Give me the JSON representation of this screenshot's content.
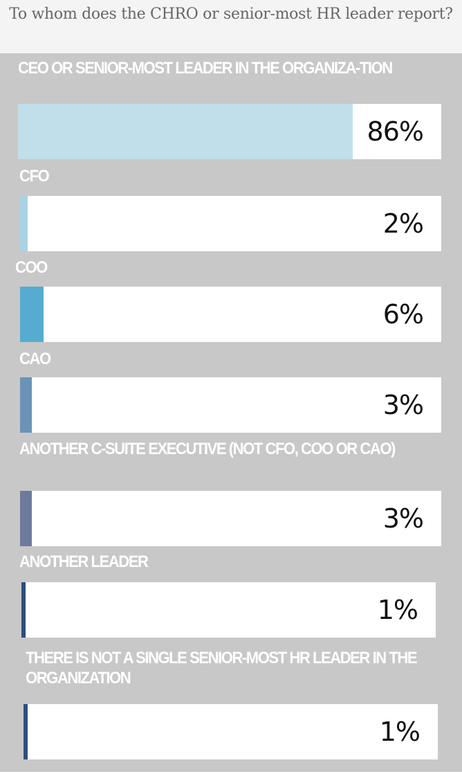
{
  "chart_data": {
    "type": "bar",
    "orientation": "horizontal",
    "title": "To whom does the CHRO or senior-most HR leader report?",
    "categories": [
      "CEO OR SENIOR-MOST LEADER IN THE ORGANIZA-TION",
      "CFO",
      "COO",
      "CAO",
      "ANOTHER C-SUITE EXECUTIVE (NOT CFO, COO OR CAO)",
      "ANOTHER LEADER",
      "THERE IS NOT A SINGLE SENIOR-MOST HR LEADER IN THE ORGANIZATION"
    ],
    "values": [
      86,
      2,
      6,
      3,
      3,
      1,
      1
    ],
    "value_labels": [
      "86%",
      "2%",
      "6%",
      "3%",
      "3%",
      "1%",
      "1%"
    ],
    "colors": [
      "#c1dfea",
      "#a9d3e4",
      "#56abd0",
      "#6a93b7",
      "#6e7a9c",
      "#2e4e7a",
      "#2e5180"
    ],
    "xlim": [
      0,
      100
    ],
    "grid": false,
    "legend": "none"
  }
}
